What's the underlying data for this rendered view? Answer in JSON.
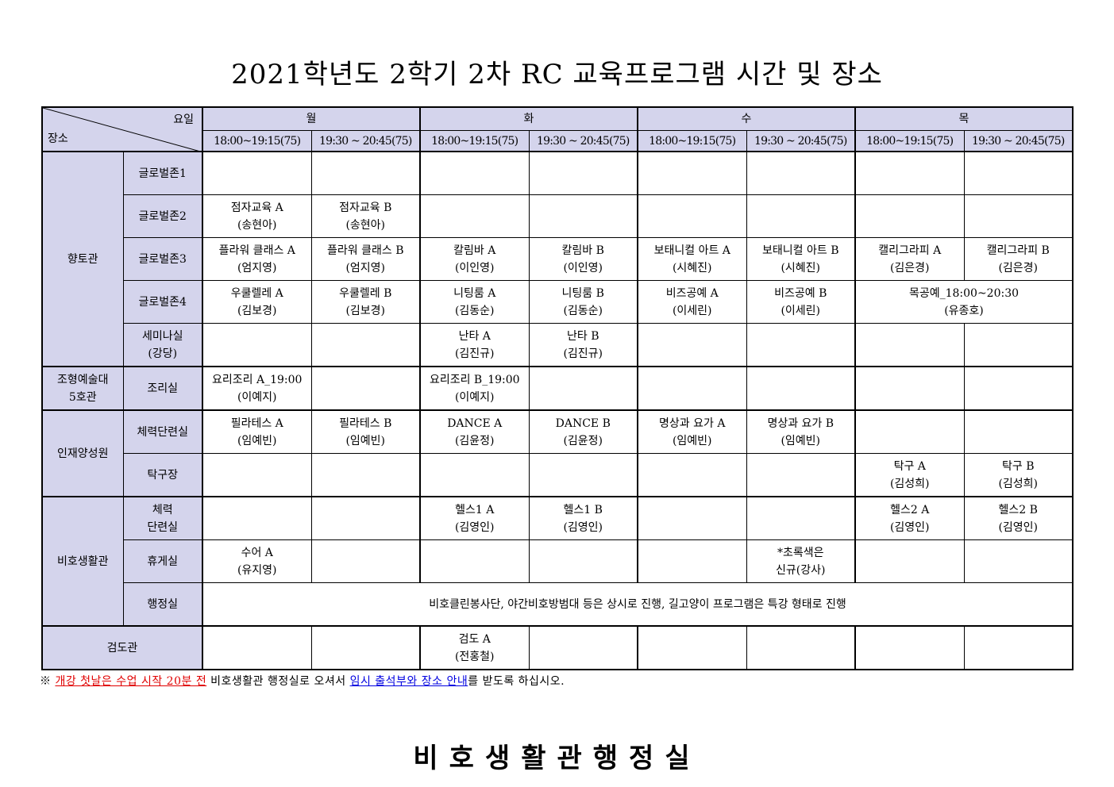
{
  "title": "2021학년도 2학기 2차 RC 교육프로그램 시간 및 장소",
  "header": {
    "corner_day_label": "요일",
    "corner_place_label": "장소",
    "days": [
      "월",
      "화",
      "수",
      "목"
    ],
    "slots": [
      "18:00~19:15(75)",
      "19:30 ~ 20:45(75)",
      "18:00~19:15(75)",
      "19:30 ~ 20:45(75)",
      "18:00~19:15(75)",
      "19:30 ~ 20:45(75)",
      "18:00~19:15(75)",
      "19:30 ~ 20:45(75)"
    ]
  },
  "buildings": [
    {
      "name": "향토관",
      "rooms": [
        {
          "name": "글로벌존1",
          "cells": [
            {},
            {},
            {},
            {},
            {},
            {},
            {},
            {}
          ]
        },
        {
          "name": "글로벌존2",
          "cells": [
            {
              "title": "점자교육 A",
              "instructor": "(송현아)"
            },
            {
              "title": "점자교육 B",
              "instructor": "(송현아)"
            },
            {},
            {},
            {},
            {},
            {},
            {}
          ]
        },
        {
          "name": "글로벌존3",
          "cells": [
            {
              "title": "플라워 클래스 A",
              "instructor": "(엄지영)"
            },
            {
              "title": "플라워 클래스 B",
              "instructor": "(엄지영)"
            },
            {
              "title": "칼림바 A",
              "instructor": "(이인영)"
            },
            {
              "title": "칼림바 B",
              "instructor": "(이인영)"
            },
            {
              "title": "보태니컬 아트 A",
              "instructor": "(시혜진)"
            },
            {
              "title": "보태니컬 아트 B",
              "instructor": "(시혜진)"
            },
            {
              "title": "캘리그라피 A",
              "instructor": "(김은경)"
            },
            {
              "title": "캘리그라피 B",
              "instructor": "(김은경)"
            }
          ]
        },
        {
          "name": "글로벌존4",
          "cells": [
            {
              "title": "우쿨렐레 A",
              "instructor": "(김보경)"
            },
            {
              "title": "우쿨렐레 B",
              "instructor": "(김보경)"
            },
            {
              "title": "니팅룸 A",
              "instructor": "(김동순)"
            },
            {
              "title": "니팅룸 B",
              "instructor": "(김동순)"
            },
            {
              "title": "비즈공예 A",
              "instructor": "(이세린)"
            },
            {
              "title": "비즈공예 B",
              "instructor": "(이세린)"
            },
            {
              "title": "목공예_18:00~20:30",
              "instructor": "(유종호)",
              "span": 2
            }
          ]
        },
        {
          "name": "세미나실\n(강당)",
          "cells": [
            {},
            {},
            {
              "title": "난타 A",
              "instructor": "(김진규)"
            },
            {
              "title": "난타 B",
              "instructor": "(김진규)"
            },
            {},
            {},
            {},
            {}
          ]
        }
      ]
    },
    {
      "name": "조형예술대\n5호관",
      "rooms": [
        {
          "name": "조리실",
          "cells": [
            {
              "title": "요리조리 A_19:00",
              "instructor": "(이예지)"
            },
            {},
            {
              "title": "요리조리 B_19:00",
              "instructor": "(이예지)"
            },
            {},
            {},
            {},
            {},
            {}
          ]
        }
      ]
    },
    {
      "name": "인재양성원",
      "rooms": [
        {
          "name": "체력단련실",
          "cells": [
            {
              "title": "필라테스 A",
              "instructor": "(임예빈)"
            },
            {
              "title": "필라테스 B",
              "instructor": "(임예빈)"
            },
            {
              "title": "DANCE A",
              "instructor": "(김윤정)"
            },
            {
              "title": "DANCE B",
              "instructor": "(김윤정)"
            },
            {
              "title": "명상과 요가 A",
              "instructor": "(임예빈)"
            },
            {
              "title": "명상과 요가 B",
              "instructor": "(임예빈)"
            },
            {},
            {}
          ]
        },
        {
          "name": "탁구장",
          "cells": [
            {},
            {},
            {},
            {},
            {},
            {},
            {
              "title": "탁구 A",
              "instructor": "(김성희)"
            },
            {
              "title": "탁구 B",
              "instructor": "(김성희)"
            }
          ]
        }
      ]
    },
    {
      "name": "비호생활관",
      "rooms": [
        {
          "name": "체력\n단련실",
          "cells": [
            {},
            {},
            {
              "title": "헬스1 A",
              "instructor": "(김영인)"
            },
            {
              "title": "헬스1 B",
              "instructor": "(김영인)"
            },
            {},
            {},
            {
              "title": "헬스2 A",
              "instructor": "(김영인)"
            },
            {
              "title": "헬스2 B",
              "instructor": "(김영인)"
            }
          ]
        },
        {
          "name": "휴게실",
          "cells": [
            {
              "title": "수어 A",
              "instructor": "(유지영)"
            },
            {},
            {},
            {},
            {},
            {
              "title": "*초록색은",
              "instructor": "신규(강사)"
            },
            {},
            {}
          ]
        },
        {
          "name": "행정실",
          "cells": [
            {
              "title": "비호클린봉사단, 야간비호방범대 등은 상시로 진행, 길고양이 프로그램은 특강 형태로 진행",
              "span": 8
            }
          ]
        }
      ]
    },
    {
      "name": "검도관",
      "rooms": [
        {
          "name": "",
          "cells": [
            {},
            {},
            {
              "title": "검도 A",
              "instructor": "(전홍철)"
            },
            {},
            {},
            {},
            {},
            {}
          ]
        }
      ]
    }
  ],
  "note": {
    "prefix": "※ ",
    "red": "개강 첫날은 수업 시작 20분 전",
    "middle": " 비호생활관 행정실로 오셔서 ",
    "blue": "임시 출석부와 장소 안내",
    "suffix": "를 받도록 하십시오."
  },
  "footer": "비호생활관행정실",
  "colors": {
    "header_bg": "#d4d4ec",
    "note_red": "#e00000",
    "note_blue": "#0000e0"
  }
}
